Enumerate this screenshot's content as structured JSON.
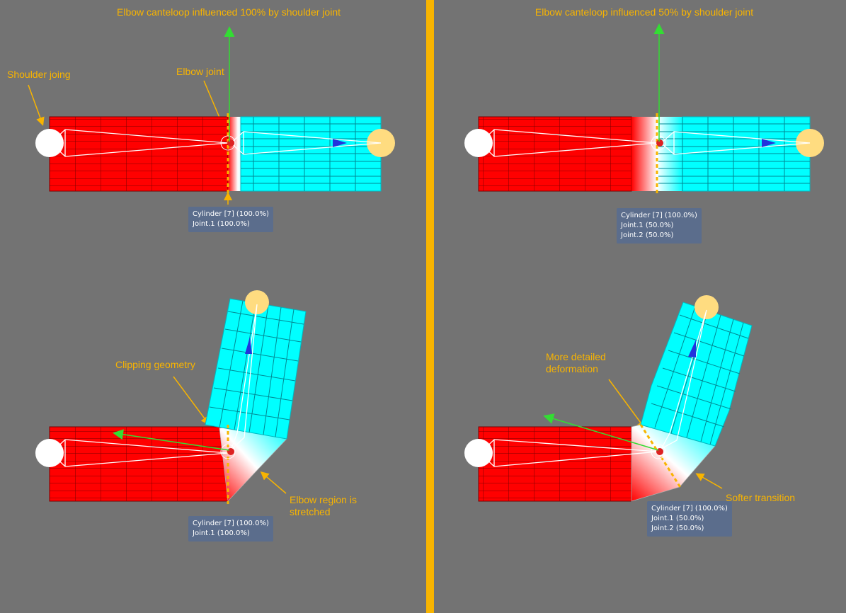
{
  "panels": [
    {
      "title": "Elbow canteloop influenced 100% by shoulder joint",
      "callouts": {
        "shoulder": "Shoulder joing",
        "elbow": "Elbow joint"
      },
      "tooltip": [
        "Cylinder [7] (100.0%)",
        "Joint.1 (100.0%)"
      ]
    },
    {
      "title": "Elbow canteloop influenced 50% by shoulder joint",
      "tooltip": [
        "Cylinder [7] (100.0%)",
        "Joint.1 (50.0%)",
        "Joint.2 (50.0%)"
      ]
    },
    {
      "callouts": {
        "clipping": "Clipping geometry",
        "stretched_1": "Elbow region is",
        "stretched_2": "stretched"
      },
      "tooltip": [
        "Cylinder [7] (100.0%)",
        "Joint.1 (100.0%)"
      ]
    },
    {
      "callouts": {
        "detailed_1": "More detailed",
        "detailed_2": "deformation",
        "softer": "Softer transition"
      },
      "tooltip": [
        "Cylinder [7] (100.0%)",
        "Joint.1 (50.0%)",
        "Joint.2 (50.0%)"
      ]
    }
  ],
  "colors": {
    "background": "#737373",
    "divider": "#f8b400",
    "annotation": "#f8b400",
    "upper_arm": "#ff0000",
    "lower_arm": "#00ffff",
    "tooltip": "#5b6d8c"
  }
}
